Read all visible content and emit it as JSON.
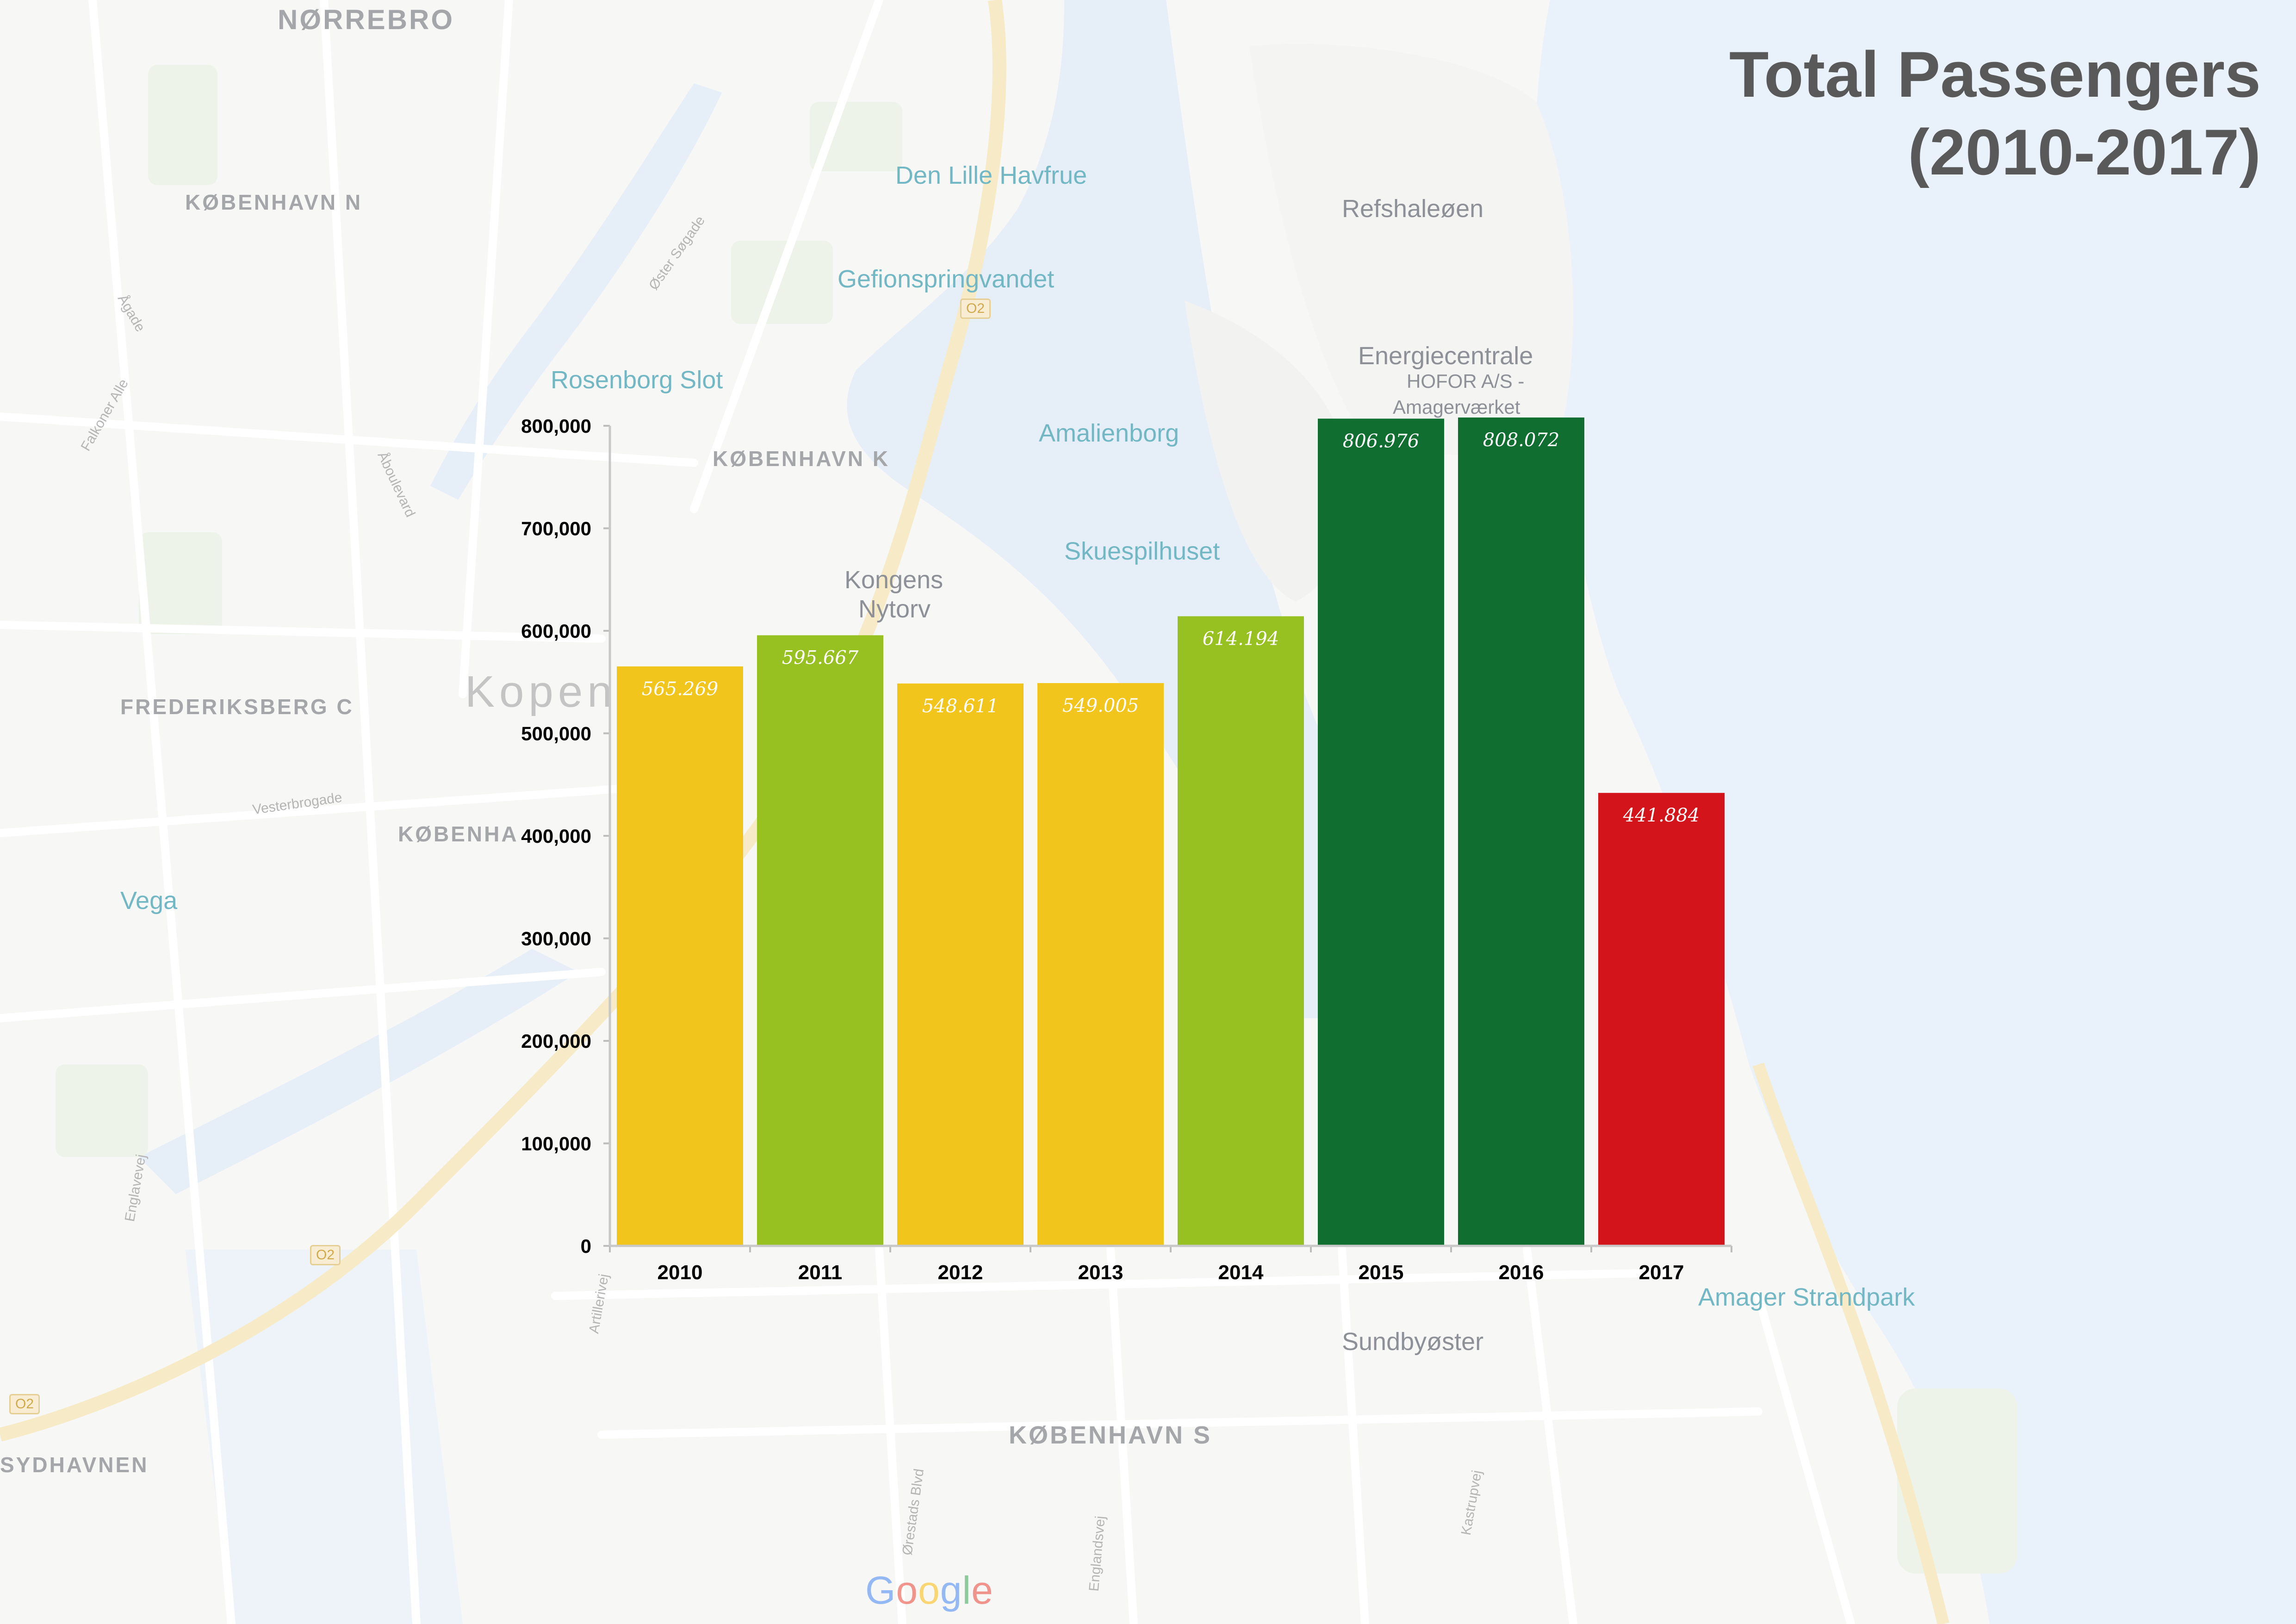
{
  "title": {
    "line1": "Total Passengers",
    "line2": "(2010-2017)"
  },
  "map_labels": {
    "norrebro": "NØRREBRO",
    "kobenhavn_n": "KØBENHAVN N",
    "den_lille_havfrue": "Den Lille Havfrue",
    "refshaleoen": "Refshaleøen",
    "oster_sogade": "Øster Søgade",
    "gefionspringvandet": "Gefionspringvandet",
    "agade": "Ågade",
    "road_o2_top": "O2",
    "energiecentrale": "Energiecentrale",
    "hofor": "HOFOR A/S -",
    "amagervaerket": "Amagerværket",
    "rosenborg_slot": "Rosenborg Slot",
    "amalienborg": "Amalienborg",
    "falkoner_alle": "Falkoner Alle",
    "kobenhavn_k": "KØBENHAVN K",
    "aboulevard": "Åboulevard",
    "kongens": "Kongens",
    "nytorv": "Nytorv",
    "skuespilhuset": "Skuespilhuset",
    "frederiksberg_c": "FREDERIKSBERG C",
    "kopen": "Kopen",
    "vesterbrogade": "Vesterbrogade",
    "kobenha": "KØBENHA",
    "vega": "Vega",
    "englavej": "Englavevej",
    "road_o2_mid": "O2",
    "road_o2_left": "O2",
    "sydhavnen": "SYDHAVNEN",
    "artillerivej": "Artillerivej",
    "amager_strandpark": "Amager Strandpark",
    "sundbyoster": "Sundbyøster",
    "kobenhavn_s": "KØBENHAVN S",
    "orestads_blvd": "Ørestads Blvd",
    "englandsvej": "Englandsvej",
    "kastrupvej": "Kastrupvej"
  },
  "google_logo": {
    "g1": "G",
    "g2": "o",
    "g3": "o",
    "g4": "g",
    "g5": "l",
    "g6": "e"
  },
  "chart_data": {
    "type": "bar",
    "title": "",
    "xlabel": "",
    "ylabel": "",
    "categories": [
      "2010",
      "2011",
      "2012",
      "2013",
      "2014",
      "2015",
      "2016",
      "2017"
    ],
    "values": [
      565269,
      595667,
      548611,
      549005,
      614194,
      806976,
      808072,
      441884
    ],
    "data_labels": [
      "565.269",
      "595.667",
      "548.611",
      "549.005",
      "614.194",
      "806.976",
      "808.072",
      "441.884"
    ],
    "bar_colors": [
      "#f2c51c",
      "#97c121",
      "#f2c51c",
      "#f2c51c",
      "#97c121",
      "#116e31",
      "#116e31",
      "#d3141b"
    ],
    "ylim": [
      0,
      800000
    ],
    "yticks": [
      0,
      100000,
      200000,
      300000,
      400000,
      500000,
      600000,
      700000,
      800000
    ],
    "ytick_labels": [
      "0",
      "100,000",
      "200,000",
      "300,000",
      "400,000",
      "500,000",
      "600,000",
      "700,000",
      "800,000"
    ],
    "grid": false,
    "legend": "none"
  }
}
